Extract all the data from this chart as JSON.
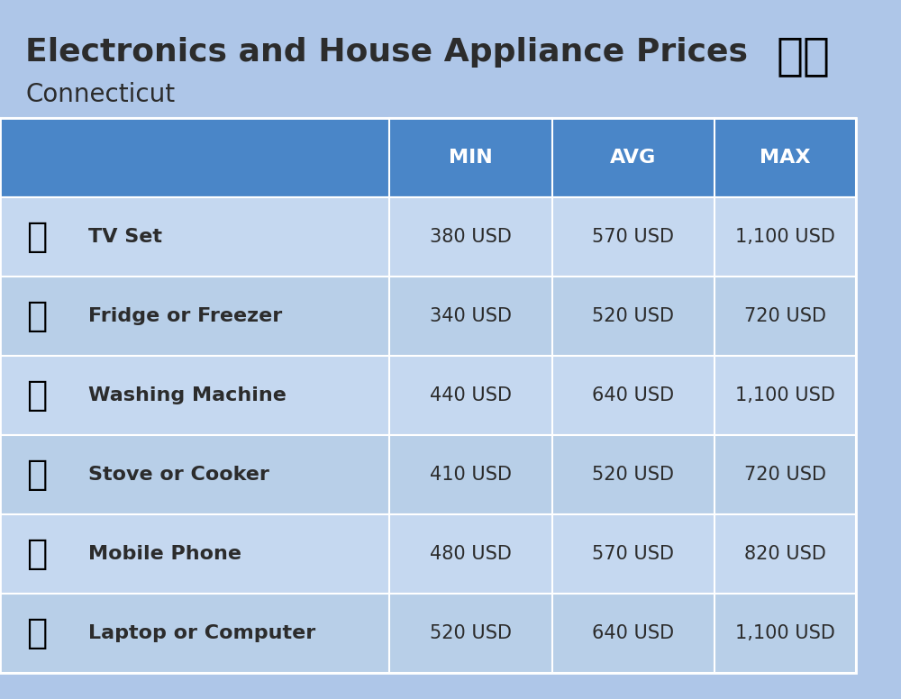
{
  "title": "Electronics and House Appliance Prices",
  "subtitle": "Connecticut",
  "background_color": "#aec6e8",
  "header_color": "#4a86c8",
  "header_text_color": "#ffffff",
  "row_color_light": "#c5d8f0",
  "row_color_dark": "#b8cfe8",
  "border_color": "#ffffff",
  "text_color": "#2c2c2c",
  "columns": [
    "MIN",
    "AVG",
    "MAX"
  ],
  "rows": [
    {
      "label": "TV Set",
      "min": "380 USD",
      "avg": "570 USD",
      "max": "1,100 USD",
      "emoji": "📺"
    },
    {
      "label": "Fridge or Freezer",
      "min": "340 USD",
      "avg": "520 USD",
      "max": "720 USD",
      "emoji": "🆒"
    },
    {
      "label": "Washing Machine",
      "min": "440 USD",
      "avg": "640 USD",
      "max": "1,100 USD",
      "emoji": "🧳"
    },
    {
      "label": "Stove or Cooker",
      "min": "410 USD",
      "avg": "520 USD",
      "max": "720 USD",
      "emoji": "🪣"
    },
    {
      "label": "Mobile Phone",
      "min": "480 USD",
      "avg": "570 USD",
      "max": "820 USD",
      "emoji": "📱"
    },
    {
      "label": "Laptop or Computer",
      "min": "520 USD",
      "avg": "640 USD",
      "max": "1,100 USD",
      "emoji": "💻"
    }
  ],
  "title_fontsize": 26,
  "subtitle_fontsize": 20,
  "header_fontsize": 16,
  "cell_fontsize": 15,
  "label_fontsize": 16
}
